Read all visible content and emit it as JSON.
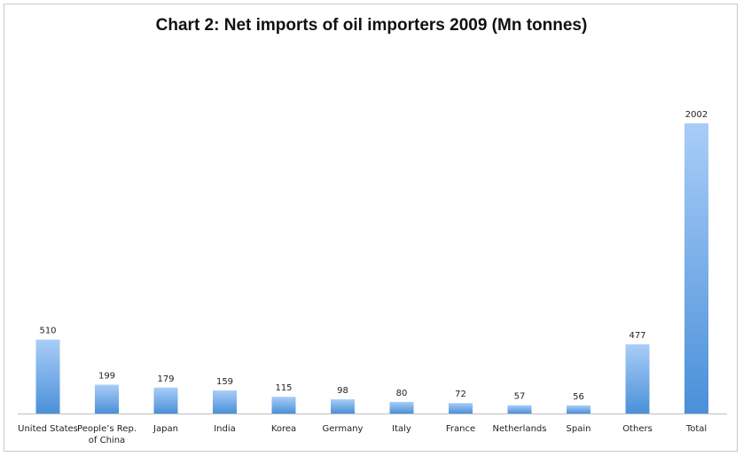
{
  "chart_data": {
    "type": "bar",
    "title": "Chart 2: Net imports of oil importers 2009 (Mn tonnes)",
    "categories": [
      [
        "United States"
      ],
      [
        "People’s Rep.",
        "of China"
      ],
      [
        "Japan"
      ],
      [
        "India"
      ],
      [
        "Korea"
      ],
      [
        "Germany"
      ],
      [
        "Italy"
      ],
      [
        "France"
      ],
      [
        "Netherlands"
      ],
      [
        "Spain"
      ],
      [
        "Others"
      ],
      [
        "Total"
      ]
    ],
    "values": [
      510,
      199,
      179,
      159,
      115,
      98,
      80,
      72,
      57,
      56,
      477,
      2002
    ],
    "xlabel": "",
    "ylabel": "",
    "ylim": [
      0,
      2002
    ],
    "grid": false,
    "legend": "none",
    "colors": {
      "bar_top": "#a9cdf7",
      "bar_bottom": "#4a90d9",
      "axis": "#bfbfbf"
    }
  }
}
